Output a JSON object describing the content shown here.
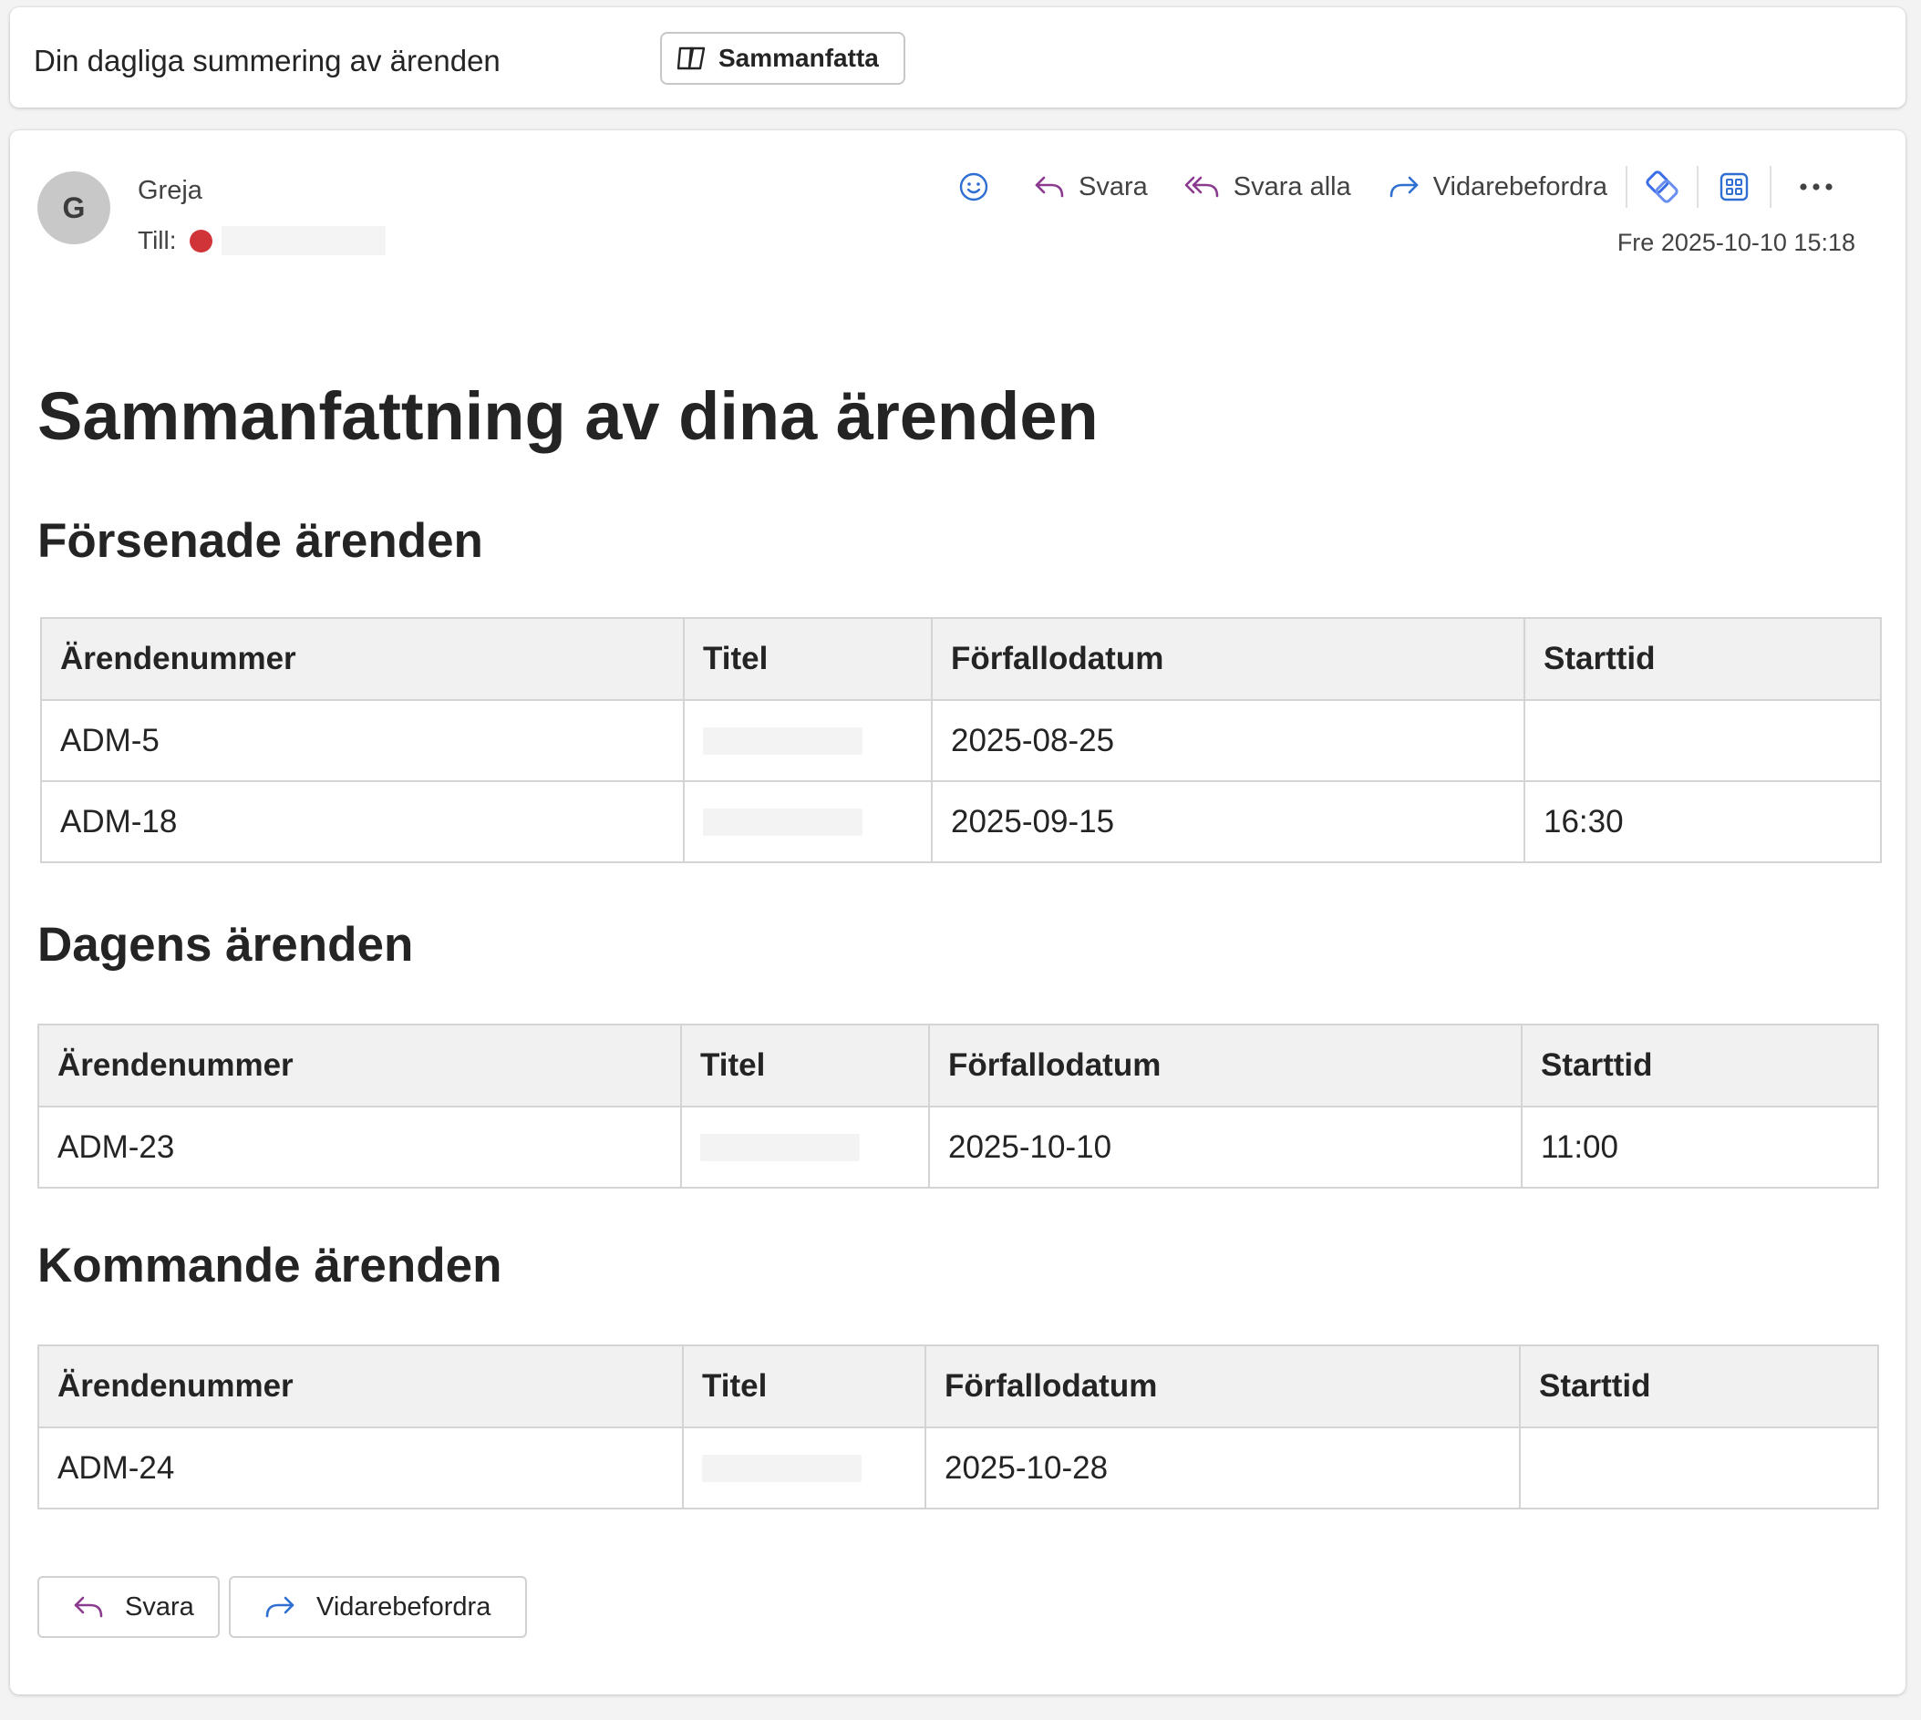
{
  "subject": {
    "text": "Din dagliga summering av ärenden",
    "summarize_label": "Sammanfatta"
  },
  "message": {
    "avatar_initial": "G",
    "sender": "Greja",
    "to_label": "Till:",
    "date": "Fre 2025-10-10 15:18",
    "toolbar": {
      "reply": "Svara",
      "reply_all": "Svara alla",
      "forward": "Vidarebefordra"
    }
  },
  "body": {
    "title": "Sammanfattning av dina ärenden",
    "columns": [
      "Ärendenummer",
      "Titel",
      "Förfallodatum",
      "Starttid"
    ],
    "sections": [
      {
        "heading": "Försenade ärenden",
        "rows": [
          {
            "id": "ADM-5",
            "title": "",
            "due": "2025-08-25",
            "start": ""
          },
          {
            "id": "ADM-18",
            "title": "",
            "due": "2025-09-15",
            "start": "16:30"
          }
        ]
      },
      {
        "heading": "Dagens ärenden",
        "rows": [
          {
            "id": "ADM-23",
            "title": "",
            "due": "2025-10-10",
            "start": "11:00"
          }
        ]
      },
      {
        "heading": "Kommande ärenden",
        "rows": [
          {
            "id": "ADM-24",
            "title": "",
            "due": "2025-10-28",
            "start": ""
          }
        ]
      }
    ]
  },
  "footer": {
    "reply": "Svara",
    "forward": "Vidarebefordra"
  },
  "colors": {
    "reply_icon": "#8a3b8f",
    "forward_icon": "#2f6fd1",
    "icon_blue": "#2f6fd1",
    "status_dot": "#d13438"
  }
}
